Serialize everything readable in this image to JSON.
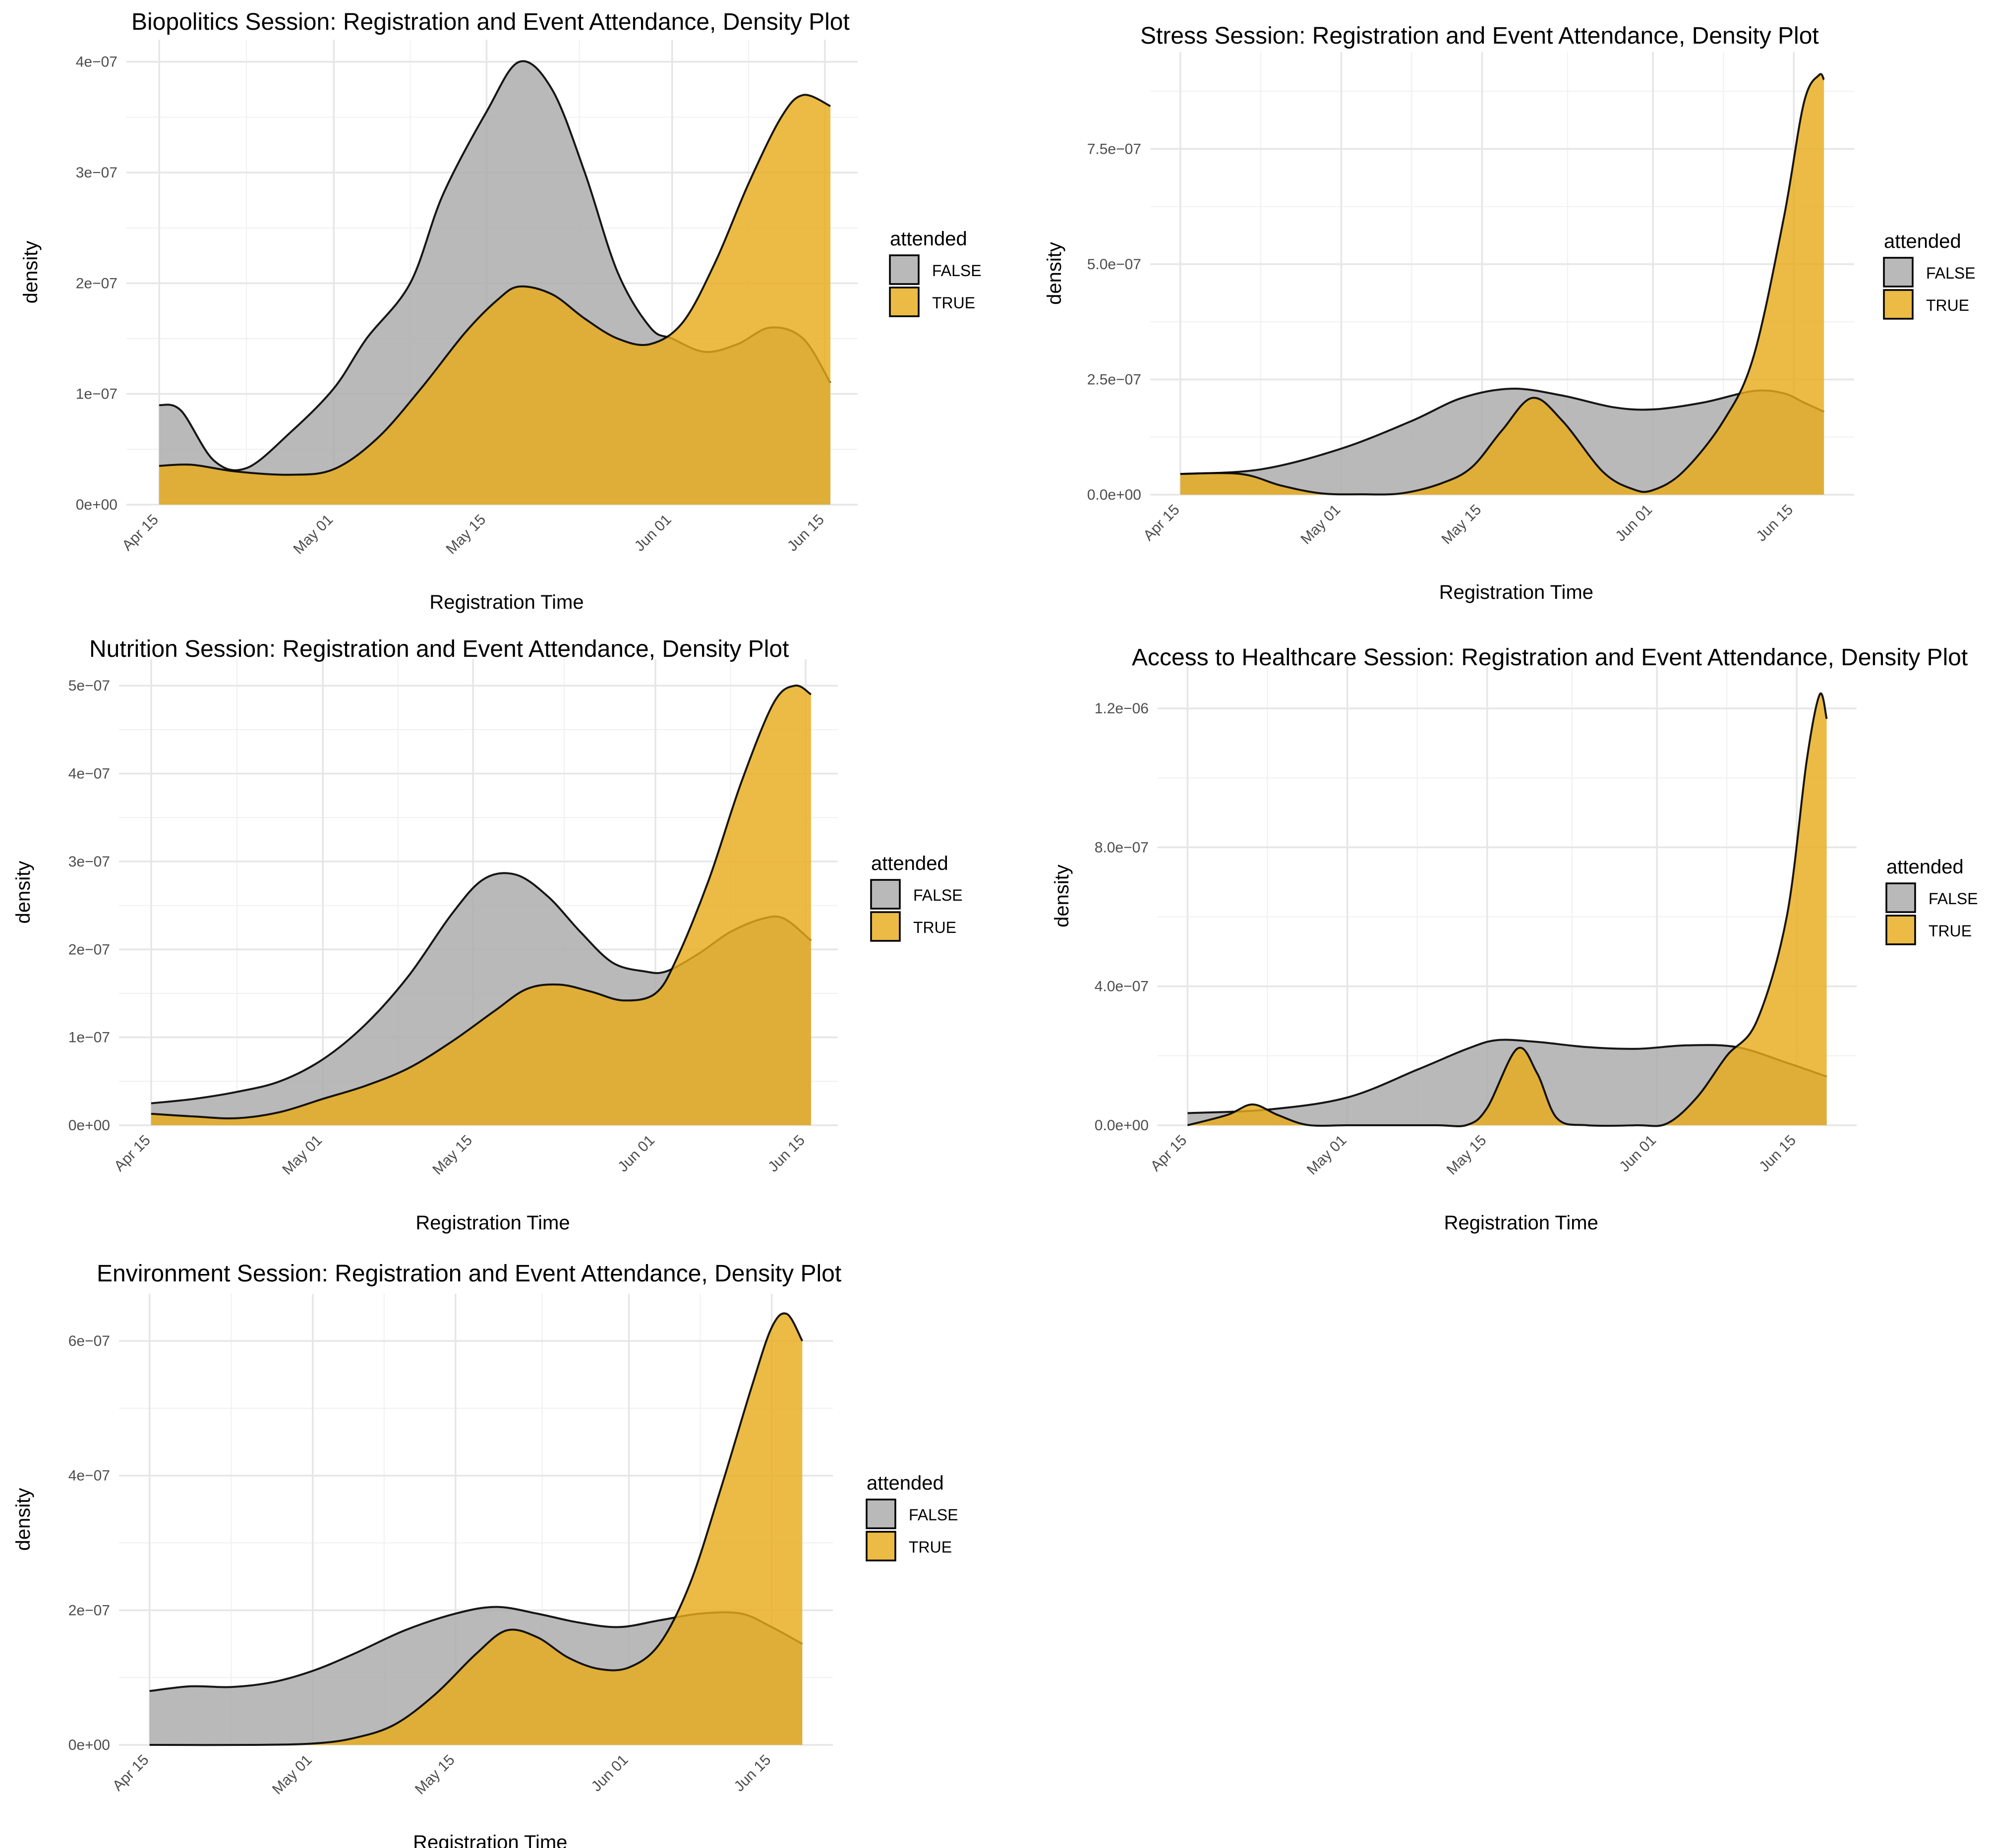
{
  "chart_data": [
    {
      "type": "area",
      "title": "Biopolitics Session: Registration and Event Attendance, Density Plot",
      "xlabel": "Registration Time",
      "ylabel": "density",
      "x_ticks": [
        "Apr 15",
        "May 01",
        "May 15",
        "Jun 01",
        "Jun 15"
      ],
      "x_tick_days": [
        0,
        16,
        30,
        47,
        61
      ],
      "xlim": [
        -3,
        64
      ],
      "ylim": [
        0,
        4.2e-07
      ],
      "y_ticks": [
        0,
        1e-07,
        2e-07,
        3e-07,
        4e-07
      ],
      "y_tick_labels": [
        "0e+00",
        "1e−07",
        "2e−07",
        "3e−07",
        "4e−07"
      ],
      "x_range": [
        0,
        61.5
      ],
      "legend_title": "attended",
      "series": [
        {
          "name": "FALSE",
          "color": "#a9a9a9",
          "x": [
            0,
            2,
            5,
            8,
            12,
            16,
            19,
            23,
            26,
            30,
            33,
            36,
            39,
            42,
            45,
            47,
            50,
            53,
            56,
            59,
            61.5
          ],
          "y": [
            9e-08,
            8.5e-08,
            4e-08,
            3.3e-08,
            6.5e-08,
            1.05e-07,
            1.5e-07,
            2e-07,
            2.8e-07,
            3.55e-07,
            4e-07,
            3.75e-07,
            3e-07,
            2.1e-07,
            1.6e-07,
            1.5e-07,
            1.38e-07,
            1.45e-07,
            1.6e-07,
            1.5e-07,
            1.1e-07
          ]
        },
        {
          "name": "TRUE",
          "color": "#e8ac1c",
          "x": [
            0,
            3,
            7,
            12,
            16,
            20,
            24,
            28,
            31,
            33,
            36,
            39,
            42,
            45,
            48,
            51,
            54,
            57,
            59,
            61.5
          ],
          "y": [
            3.5e-08,
            3.6e-08,
            3e-08,
            2.7e-08,
            3.2e-08,
            6e-08,
            1.05e-07,
            1.55e-07,
            1.85e-07,
            1.97e-07,
            1.9e-07,
            1.68e-07,
            1.5e-07,
            1.45e-07,
            1.65e-07,
            2.2e-07,
            2.9e-07,
            3.5e-07,
            3.7e-07,
            3.6e-07
          ]
        }
      ]
    },
    {
      "type": "area",
      "title": "Stress Session: Registration and Event Attendance, Density Plot",
      "xlabel": "Registration Time",
      "ylabel": "density",
      "x_ticks": [
        "Apr 15",
        "May 01",
        "May 15",
        "Jun 01",
        "Jun 15"
      ],
      "x_tick_days": [
        0,
        16,
        30,
        47,
        61
      ],
      "xlim": [
        -3,
        67
      ],
      "ylim": [
        0,
        9.6e-07
      ],
      "y_ticks": [
        0,
        2.5e-07,
        5e-07,
        7.5e-07
      ],
      "y_tick_labels": [
        "0.0e+00",
        "2.5e−07",
        "5.0e−07",
        "7.5e−07"
      ],
      "x_range": [
        0,
        64
      ],
      "legend_title": "attended",
      "series": [
        {
          "name": "FALSE",
          "color": "#a9a9a9",
          "x": [
            0,
            8,
            16,
            23,
            28,
            33,
            38,
            43,
            47,
            52,
            57,
            60,
            62,
            64
          ],
          "y": [
            4.5e-08,
            5.5e-08,
            1e-07,
            1.6e-07,
            2.1e-07,
            2.3e-07,
            2.15e-07,
            1.9e-07,
            1.85e-07,
            2e-07,
            2.25e-07,
            2.2e-07,
            2e-07,
            1.8e-07
          ]
        },
        {
          "name": "TRUE",
          "color": "#e8ac1c",
          "x": [
            0,
            6,
            10,
            14,
            18,
            22,
            26,
            29,
            32,
            35,
            38,
            42,
            45,
            47,
            50,
            54,
            57,
            60,
            62,
            63.5,
            64
          ],
          "y": [
            4.5e-08,
            4.5e-08,
            2e-08,
            3e-09,
            1e-09,
            3e-09,
            2.5e-08,
            6e-08,
            1.4e-07,
            2.1e-07,
            1.6e-07,
            5e-08,
            1.2e-08,
            1e-08,
            5e-08,
            1.6e-07,
            3e-07,
            6e-07,
            8.5e-07,
            9.1e-07,
            9e-07
          ]
        }
      ]
    },
    {
      "type": "area",
      "title": "Nutrition Session: Registration and Event Attendance, Density Plot",
      "xlabel": "Registration Time",
      "ylabel": "density",
      "x_ticks": [
        "Apr 15",
        "May 01",
        "May 15",
        "Jun 01",
        "Jun 15"
      ],
      "x_tick_days": [
        0,
        16,
        30,
        47,
        61
      ],
      "xlim": [
        -3,
        64
      ],
      "ylim": [
        0,
        5.3e-07
      ],
      "y_ticks": [
        0,
        1e-07,
        2e-07,
        3e-07,
        4e-07,
        5e-07
      ],
      "y_tick_labels": [
        "0e+00",
        "1e−07",
        "2e−07",
        "3e−07",
        "4e−07",
        "5e−07"
      ],
      "x_range": [
        0,
        61.5
      ],
      "legend_title": "attended",
      "series": [
        {
          "name": "FALSE",
          "color": "#a9a9a9",
          "x": [
            0,
            4,
            8,
            12,
            16,
            20,
            24,
            28,
            31,
            34,
            37,
            40,
            43,
            46,
            48,
            51,
            54,
            57,
            59,
            61.5
          ],
          "y": [
            2.5e-08,
            3e-08,
            3.8e-08,
            5e-08,
            7.5e-08,
            1.15e-07,
            1.7e-07,
            2.4e-07,
            2.8e-07,
            2.85e-07,
            2.6e-07,
            2.2e-07,
            1.85e-07,
            1.75e-07,
            1.75e-07,
            1.95e-07,
            2.2e-07,
            2.35e-07,
            2.35e-07,
            2.1e-07
          ]
        },
        {
          "name": "TRUE",
          "color": "#e8ac1c",
          "x": [
            0,
            4,
            8,
            12,
            16,
            20,
            24,
            28,
            32,
            35,
            38,
            41,
            44,
            47,
            49,
            52,
            55,
            58,
            60,
            61.5
          ],
          "y": [
            1.3e-08,
            1e-08,
            8e-09,
            1.5e-08,
            3e-08,
            4.5e-08,
            6.5e-08,
            9.5e-08,
            1.3e-07,
            1.55e-07,
            1.6e-07,
            1.52e-07,
            1.42e-07,
            1.5e-07,
            1.9e-07,
            2.8e-07,
            3.9e-07,
            4.8e-07,
            5e-07,
            4.9e-07
          ]
        }
      ]
    },
    {
      "type": "area",
      "title": "Access to Healthcare Session: Registration and Event Attendance, Density Plot",
      "xlabel": "Registration Time",
      "ylabel": "density",
      "x_ticks": [
        "Apr 15",
        "May 01",
        "May 15",
        "Jun 01",
        "Jun 15"
      ],
      "x_tick_days": [
        0,
        16,
        30,
        47,
        61
      ],
      "xlim": [
        -3,
        67
      ],
      "ylim": [
        0,
        1.32e-06
      ],
      "y_ticks": [
        0,
        4e-07,
        8e-07,
        1.2e-06
      ],
      "y_tick_labels": [
        "0.0e+00",
        "4.0e−07",
        "8.0e−07",
        "1.2e−06"
      ],
      "x_range": [
        0,
        64
      ],
      "legend_title": "attended",
      "series": [
        {
          "name": "FALSE",
          "color": "#a9a9a9",
          "x": [
            0,
            8,
            16,
            23,
            28,
            31,
            35,
            40,
            45,
            50,
            55,
            60,
            64
          ],
          "y": [
            3.5e-08,
            4.5e-08,
            8e-08,
            1.6e-07,
            2.2e-07,
            2.45e-07,
            2.4e-07,
            2.25e-07,
            2.2e-07,
            2.3e-07,
            2.25e-07,
            1.8e-07,
            1.4e-07
          ]
        },
        {
          "name": "TRUE",
          "color": "#e8ac1c",
          "x": [
            0,
            4,
            6.5,
            9,
            12,
            16,
            20,
            25,
            28,
            30,
            33,
            35,
            37,
            40,
            45,
            48,
            51,
            54,
            57,
            60,
            62,
            63.3,
            64
          ],
          "y": [
            0,
            3e-08,
            6e-08,
            3e-08,
            1e-09,
            0,
            0,
            0,
            1e-09,
            5e-08,
            2.2e-07,
            1.5e-07,
            2e-08,
            0,
            0,
            5e-09,
            8e-08,
            2e-07,
            3e-07,
            6e-07,
            1.05e-06,
            1.24e-06,
            1.17e-06
          ]
        }
      ]
    },
    {
      "type": "area",
      "title": "Environment Session: Registration and Event Attendance, Density Plot",
      "xlabel": "Registration Time",
      "ylabel": "density",
      "x_ticks": [
        "Apr 15",
        "May 01",
        "May 15",
        "Jun 01",
        "Jun 15"
      ],
      "x_tick_days": [
        0,
        16,
        30,
        47,
        61
      ],
      "xlim": [
        -3,
        67
      ],
      "ylim": [
        0,
        6.7e-07
      ],
      "y_ticks": [
        0,
        2e-07,
        4e-07,
        6e-07
      ],
      "y_tick_labels": [
        "0e+00",
        "2e−07",
        "4e−07",
        "6e−07"
      ],
      "x_range": [
        0,
        64
      ],
      "legend_title": "attended",
      "series": [
        {
          "name": "FALSE",
          "color": "#a9a9a9",
          "x": [
            0,
            4,
            8,
            12,
            16,
            20,
            25,
            30,
            34,
            38,
            42,
            46,
            50,
            54,
            58,
            61,
            64
          ],
          "y": [
            8e-08,
            8.7e-08,
            8.6e-08,
            9.3e-08,
            1.1e-07,
            1.35e-07,
            1.7e-07,
            1.95e-07,
            2.05e-07,
            1.95e-07,
            1.82e-07,
            1.75e-07,
            1.85e-07,
            1.95e-07,
            1.95e-07,
            1.75e-07,
            1.5e-07
          ]
        },
        {
          "name": "TRUE",
          "color": "#e8ac1c",
          "x": [
            0,
            10,
            16,
            20,
            24,
            28,
            32,
            35,
            38,
            41,
            44,
            47,
            50,
            53,
            56,
            59,
            61,
            62.5,
            64
          ],
          "y": [
            0,
            0,
            2e-09,
            1e-08,
            3e-08,
            7.5e-08,
            1.35e-07,
            1.7e-07,
            1.6e-07,
            1.3e-07,
            1.13e-07,
            1.15e-07,
            1.5e-07,
            2.4e-07,
            3.8e-07,
            5.3e-07,
            6.2e-07,
            6.4e-07,
            6e-07
          ]
        }
      ]
    }
  ]
}
